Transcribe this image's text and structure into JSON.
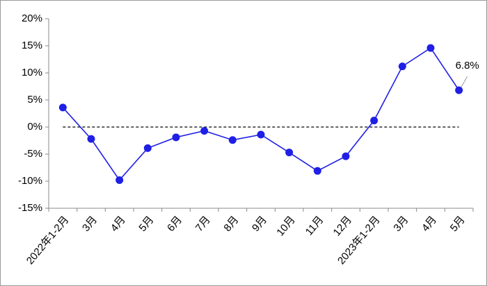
{
  "chart_data": {
    "type": "line",
    "categories": [
      "2022年1-2月",
      "3月",
      "4月",
      "5月",
      "6月",
      "7月",
      "8月",
      "9月",
      "10月",
      "11月",
      "12月",
      "2023年1-2月",
      "3月",
      "4月",
      "5月"
    ],
    "series": [
      {
        "color": "#1f1fe6",
        "values": [
          3.6,
          -2.2,
          -9.8,
          -3.9,
          -1.9,
          -0.7,
          -2.4,
          -1.4,
          -4.7,
          -8.1,
          -5.4,
          1.2,
          11.2,
          14.6,
          6.8
        ],
        "value_labels": [
          null,
          null,
          null,
          null,
          null,
          null,
          null,
          null,
          null,
          null,
          null,
          null,
          null,
          null,
          "6.8%"
        ]
      }
    ],
    "ylim": [
      -15,
      20
    ],
    "yticks": [
      {
        "value": -15,
        "label": "-15%"
      },
      {
        "value": -10,
        "label": "-10%"
      },
      {
        "value": -5,
        "label": "-5%"
      },
      {
        "value": 0,
        "label": "0%"
      },
      {
        "value": 5,
        "label": "5%"
      },
      {
        "value": 10,
        "label": "10%"
      },
      {
        "value": 15,
        "label": "15%"
      },
      {
        "value": 20,
        "label": "20%"
      }
    ],
    "zero_line": true
  }
}
